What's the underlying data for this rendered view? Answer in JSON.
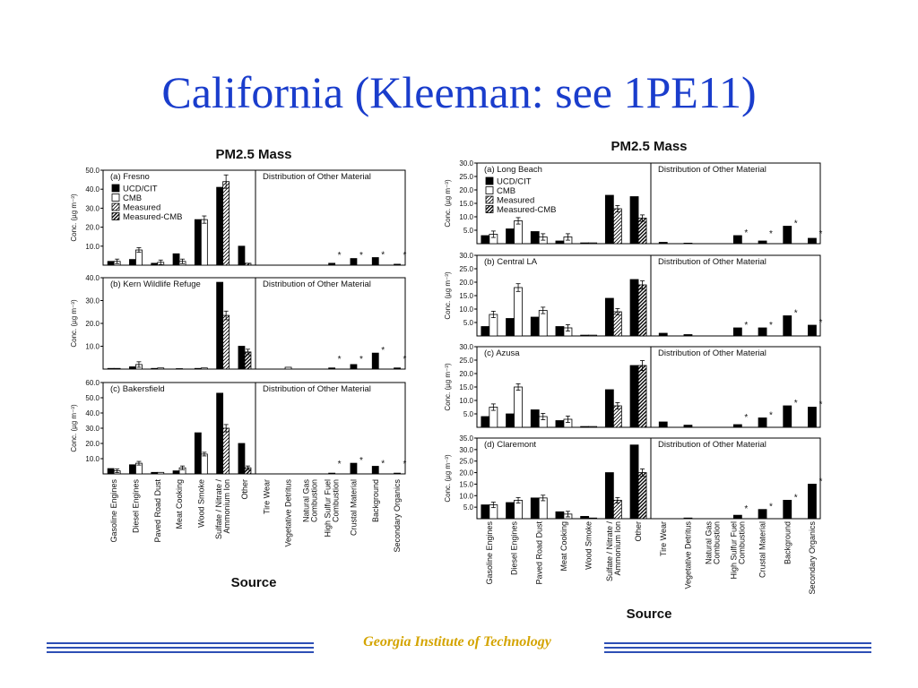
{
  "slide": {
    "title": "California (Kleeman: see 1PE11)",
    "footer": "Georgia Institute of Technology"
  },
  "legend": [
    "UCD/CIT",
    "CMB",
    "Measured",
    "Measured-CMB"
  ],
  "chart_data": [
    {
      "type": "bar",
      "title": "PM2.5 Mass",
      "xlabel": "Source",
      "ylabel": "Conc. (µg m⁻³)",
      "categories": [
        "Gasoline Engines",
        "Diesel Engines",
        "Paved Road Dust",
        "Meat Cooking",
        "Wood Smoke",
        "Sulfate / Nitrate / Ammonium Ion",
        "Other",
        "Tire Wear",
        "Vegetative Detritus",
        "Natural Gas Combustion",
        "High Sulfur Fuel Combustion",
        "Crustal Material",
        "Background",
        "Secondary Organics"
      ],
      "divider_label": "Distribution of Other Material",
      "star_categories": [
        "High Sulfur Fuel Combustion",
        "Crustal Material",
        "Background",
        "Secondary Organics"
      ],
      "panels": [
        {
          "label": "(a) Fresno",
          "ylim": [
            0,
            50
          ],
          "yticks": [
            10.0,
            20.0,
            30.0,
            40.0,
            50.0
          ],
          "series": [
            {
              "name": "UCD/CIT",
              "values": [
                2,
                3,
                1,
                6,
                24,
                41,
                10,
                0,
                0,
                0,
                1,
                3.5,
                4,
                0.5
              ]
            },
            {
              "name": "CMB",
              "values": [
                2,
                8,
                1.5,
                2,
                24,
                0,
                0,
                0,
                0,
                0,
                0,
                0,
                0,
                0
              ]
            },
            {
              "name": "Measured",
              "values": [
                0,
                0,
                0,
                0,
                0,
                44,
                0,
                0,
                0,
                0,
                0,
                0,
                0,
                0
              ]
            },
            {
              "name": "Measured-CMB",
              "values": [
                0,
                0,
                0,
                0,
                0,
                0,
                1,
                0,
                0,
                0,
                0,
                0,
                0,
                0
              ]
            }
          ]
        },
        {
          "label": "(b) Kern Wildlife Refuge",
          "ylim": [
            0,
            40
          ],
          "yticks": [
            10.0,
            20.0,
            30.0,
            40.0
          ],
          "series": [
            {
              "name": "UCD/CIT",
              "values": [
                0.3,
                1,
                0.3,
                0.2,
                0.3,
                38,
                10,
                0,
                0,
                0,
                0.5,
                2,
                7,
                0.5
              ]
            },
            {
              "name": "CMB",
              "values": [
                0.3,
                2,
                0.5,
                0,
                0.5,
                0,
                0,
                0,
                0.8,
                0,
                0,
                0,
                0,
                0
              ]
            },
            {
              "name": "Measured",
              "values": [
                0,
                0,
                0,
                0,
                0,
                23.5,
                0,
                0,
                0,
                0,
                0,
                0,
                0,
                0
              ]
            },
            {
              "name": "Measured-CMB",
              "values": [
                0,
                0,
                0,
                0,
                0,
                0,
                7.5,
                0,
                0,
                0,
                0,
                0,
                0,
                0
              ]
            }
          ]
        },
        {
          "label": "(c) Bakersfield",
          "ylim": [
            0,
            60
          ],
          "yticks": [
            10.0,
            20.0,
            30.0,
            40.0,
            50.0,
            60.0
          ],
          "series": [
            {
              "name": "UCD/CIT",
              "values": [
                3.5,
                6,
                1,
                2,
                27,
                53,
                20,
                0,
                0,
                0,
                0.5,
                7,
                5,
                0.5
              ]
            },
            {
              "name": "CMB",
              "values": [
                2,
                7,
                1,
                4,
                13,
                0,
                0,
                0,
                0,
                0,
                0,
                0,
                0,
                0
              ]
            },
            {
              "name": "Measured",
              "values": [
                0,
                0,
                0,
                0,
                0,
                30,
                0,
                0,
                0,
                0,
                0,
                0,
                0,
                0
              ]
            },
            {
              "name": "Measured-CMB",
              "values": [
                0,
                0,
                0,
                0,
                0,
                0,
                4,
                0,
                0,
                0,
                0,
                0,
                0,
                0
              ]
            }
          ]
        }
      ]
    },
    {
      "type": "bar",
      "title": "PM2.5 Mass",
      "xlabel": "Source",
      "ylabel": "Conc. (µg m⁻³)",
      "categories": [
        "Gasoline Engines",
        "Diesel Engines",
        "Paved Road Dust",
        "Meat Cooking",
        "Wood Smoke",
        "Sulfate / Nitrate / Ammonium Ion",
        "Other",
        "Tire Wear",
        "Vegetative Detritus",
        "Natural Gas Combustion",
        "High Sulfur Fuel Combustion",
        "Crustal Material",
        "Background",
        "Secondary Organics"
      ],
      "divider_label": "Distribution of Other Material",
      "star_categories": [
        "High Sulfur Fuel Combustion",
        "Crustal Material",
        "Background",
        "Secondary Organics"
      ],
      "panels": [
        {
          "label": "(a) Long Beach",
          "ylim": [
            0,
            30
          ],
          "yticks": [
            5.0,
            10.0,
            15.0,
            20.0,
            25.0,
            30.0
          ],
          "series": [
            {
              "name": "UCD/CIT",
              "values": [
                3,
                5.5,
                4.5,
                1,
                0.3,
                18,
                17.5,
                0.5,
                0.2,
                0,
                3,
                1,
                6.5,
                2
              ]
            },
            {
              "name": "CMB",
              "values": [
                3.5,
                8.5,
                2.5,
                2.5,
                0.3,
                0,
                0,
                0,
                0,
                0,
                0,
                0,
                0,
                0
              ]
            },
            {
              "name": "Measured",
              "values": [
                0,
                0,
                0,
                0,
                0,
                13,
                0,
                0,
                0,
                0,
                0,
                0,
                0,
                0
              ]
            },
            {
              "name": "Measured-CMB",
              "values": [
                0,
                0,
                0,
                0,
                0,
                0,
                9.5,
                0,
                0,
                0,
                0,
                0,
                0,
                0
              ]
            }
          ]
        },
        {
          "label": "(b) Central LA",
          "ylim": [
            0,
            30
          ],
          "yticks": [
            5.0,
            10.0,
            15.0,
            20.0,
            25.0,
            30.0
          ],
          "series": [
            {
              "name": "UCD/CIT",
              "values": [
                3.5,
                6.5,
                7,
                3.5,
                0.3,
                14,
                21,
                1,
                0.5,
                0,
                3,
                3,
                7.5,
                4
              ]
            },
            {
              "name": "CMB",
              "values": [
                8,
                18,
                9.5,
                3,
                0.3,
                0,
                0,
                0,
                0,
                0,
                0,
                0,
                0,
                0
              ]
            },
            {
              "name": "Measured",
              "values": [
                0,
                0,
                0,
                0,
                0,
                9,
                0,
                0,
                0,
                0,
                0,
                0,
                0,
                0
              ]
            },
            {
              "name": "Measured-CMB",
              "values": [
                0,
                0,
                0,
                0,
                0,
                0,
                19,
                0,
                0,
                0,
                0,
                0,
                0,
                0
              ]
            }
          ]
        },
        {
          "label": "(c) Azusa",
          "ylim": [
            0,
            30
          ],
          "yticks": [
            5.0,
            10.0,
            15.0,
            20.0,
            25.0,
            30.0
          ],
          "series": [
            {
              "name": "UCD/CIT",
              "values": [
                4,
                5,
                6.5,
                2.5,
                0.3,
                14,
                23,
                2,
                0.8,
                0,
                1,
                3.5,
                8,
                7.5
              ]
            },
            {
              "name": "CMB",
              "values": [
                7.5,
                15,
                4,
                3,
                0.3,
                0,
                0,
                0,
                0,
                0,
                0,
                0,
                0,
                0
              ]
            },
            {
              "name": "Measured",
              "values": [
                0,
                0,
                0,
                0,
                0,
                8,
                0,
                0,
                0,
                0,
                0,
                0,
                0,
                0
              ]
            },
            {
              "name": "Measured-CMB",
              "values": [
                0,
                0,
                0,
                0,
                0,
                0,
                23,
                0,
                0,
                0,
                0,
                0,
                0,
                0
              ]
            }
          ]
        },
        {
          "label": "(d) Claremont",
          "ylim": [
            0,
            35
          ],
          "yticks": [
            5.0,
            10.0,
            15.0,
            20.0,
            25.0,
            30.0,
            35.0
          ],
          "series": [
            {
              "name": "UCD/CIT",
              "values": [
                6,
                7,
                9,
                3,
                1,
                20,
                32,
                0,
                0.3,
                0,
                1.5,
                4,
                8,
                15
              ]
            },
            {
              "name": "CMB",
              "values": [
                6,
                8,
                9,
                2,
                0.3,
                0,
                0,
                0,
                0,
                0,
                0,
                0,
                0,
                0
              ]
            },
            {
              "name": "Measured",
              "values": [
                0,
                0,
                0,
                0,
                0,
                8,
                0,
                0,
                0,
                0,
                0,
                0,
                0,
                0
              ]
            },
            {
              "name": "Measured-CMB",
              "values": [
                0,
                0,
                0,
                0,
                0,
                0,
                20,
                0,
                0,
                0,
                0,
                0,
                0,
                0
              ]
            }
          ]
        }
      ]
    }
  ]
}
